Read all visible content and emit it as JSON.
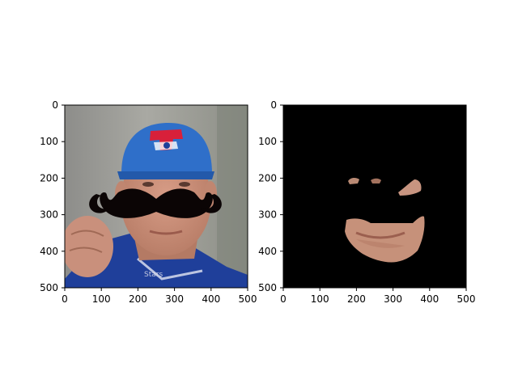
{
  "panels": [
    {
      "id": "left",
      "content": "photo of a baseball player in a blue cap with a black mustache overlay",
      "xticks": [
        "0",
        "100",
        "200",
        "300",
        "400",
        "500"
      ],
      "yticks": [
        "0",
        "100",
        "200",
        "300",
        "400",
        "500"
      ]
    },
    {
      "id": "right",
      "content": "masked face region on black background",
      "xticks": [
        "0",
        "100",
        "200",
        "300",
        "400",
        "500"
      ],
      "yticks": [
        "0",
        "100",
        "200",
        "300",
        "400",
        "500"
      ]
    }
  ],
  "colors": {
    "mask_background": "#000000",
    "cap": "#2f6fc9",
    "mustache": "#0b0505",
    "skin": "#c98e78",
    "jersey": "#1f3f9a"
  }
}
